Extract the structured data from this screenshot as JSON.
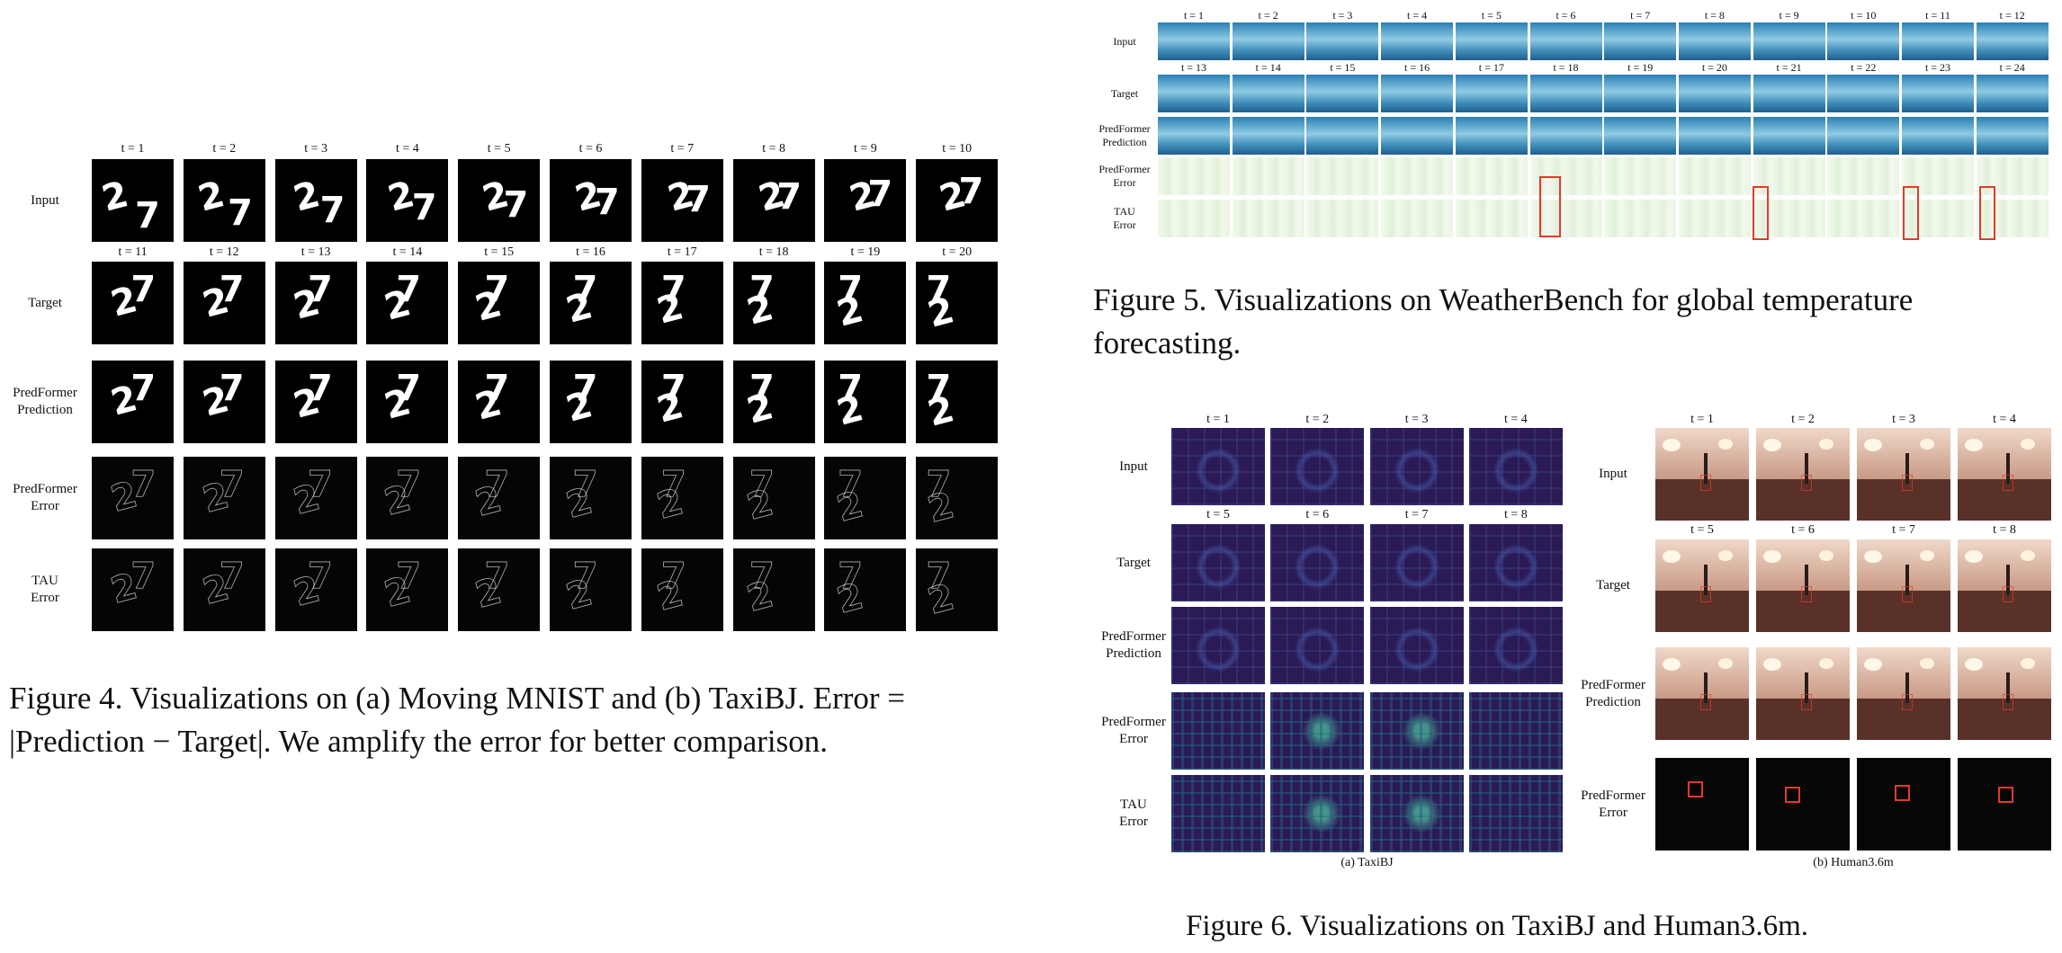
{
  "fig4": {
    "top_t": [
      "t = 1",
      "t = 2",
      "t = 3",
      "t = 4",
      "t = 5",
      "t = 6",
      "t = 7",
      "t = 8",
      "t = 9",
      "t = 10"
    ],
    "mid_t": [
      "t = 11",
      "t = 12",
      "t = 13",
      "t = 14",
      "t = 15",
      "t = 16",
      "t = 17",
      "t = 18",
      "t = 19",
      "t = 20"
    ],
    "rows": [
      "Input",
      "Target",
      "PredFormer\nPrediction",
      "PredFormer\nError",
      "TAU\nError"
    ],
    "caption": "Figure 4.  Visualizations on (a) Moving MNIST and (b) TaxiBJ. Error = |Prediction − Target|.  We amplify the error for better comparison."
  },
  "fig5": {
    "top_t": [
      "t = 1",
      "t = 2",
      "t = 3",
      "t = 4",
      "t = 5",
      "t = 6",
      "t = 7",
      "t = 8",
      "t = 9",
      "t = 10",
      "t = 11",
      "t = 12"
    ],
    "mid_t": [
      "t = 13",
      "t = 14",
      "t = 15",
      "t = 16",
      "t = 17",
      "t = 18",
      "t = 19",
      "t = 20",
      "t = 21",
      "t = 22",
      "t = 23",
      "t = 24"
    ],
    "rows": [
      "Input",
      "Target",
      "PredFormer\nPrediction",
      "PredFormer\nError",
      "TAU\nError"
    ],
    "caption": "Figure 5. Visualizations on WeatherBench for global temperature forecasting."
  },
  "fig6": {
    "top_t": [
      "t = 1",
      "t = 2",
      "t = 3",
      "t = 4"
    ],
    "mid_t": [
      "t = 5",
      "t = 6",
      "t = 7",
      "t = 8"
    ],
    "taxi_rows": [
      "Input",
      "Target",
      "PredFormer\nPrediction",
      "PredFormer\nError",
      "TAU\nError"
    ],
    "human_rows": [
      "Input",
      "Target",
      "PredFormer\nPrediction",
      "PredFormer\nError"
    ],
    "sub_a": "(a) TaxiBJ",
    "sub_b": "(b) Human3.6m",
    "caption": "Figure 6. Visualizations on TaxiBJ and Human3.6m."
  },
  "colors": {
    "highlight_box": "#e23a2a",
    "taxi_bg": "#2b1a55",
    "weather_bg": "#2a7fb5",
    "error_bg": "#f3f9ee"
  }
}
